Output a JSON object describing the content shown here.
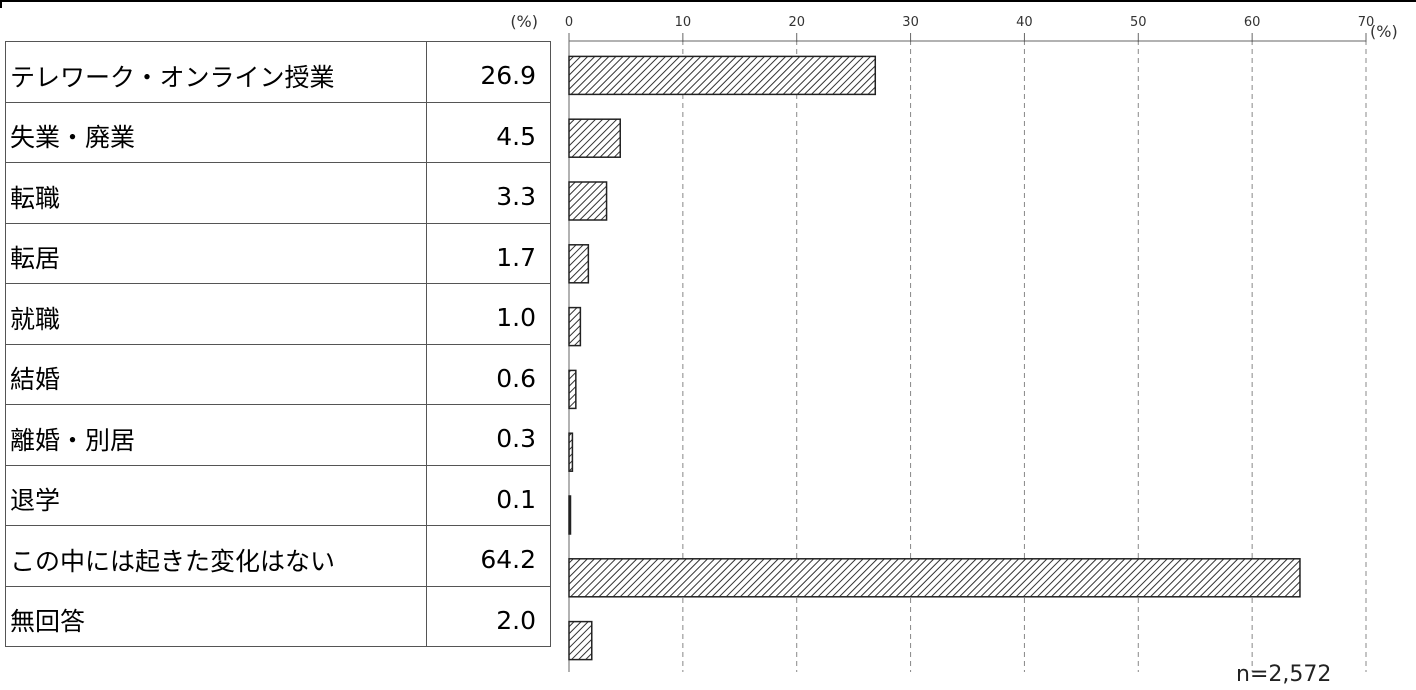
{
  "chart_data": {
    "type": "bar",
    "orientation": "horizontal",
    "categories": [
      "テレワーク・オンライン授業",
      "失業・廃業",
      "転職",
      "転居",
      "就職",
      "結婚",
      "離婚・別居",
      "退学",
      "この中には起きた変化はない",
      "無回答"
    ],
    "values": [
      26.9,
      4.5,
      3.3,
      1.7,
      1.0,
      0.6,
      0.3,
      0.1,
      64.2,
      2.0
    ],
    "value_labels": [
      "26.9",
      "4.5",
      "3.3",
      "1.7",
      "1.0",
      "0.6",
      "0.3",
      "0.1",
      "64.2",
      "2.0"
    ],
    "xlim": [
      0,
      70
    ],
    "xticks": [
      0,
      10,
      20,
      30,
      40,
      50,
      60,
      70
    ],
    "x_unit": "(%)",
    "table_unit": "(%)",
    "grid": "vertical dashed",
    "bar_pattern": "diagonal hatch",
    "note": "n=2,572"
  }
}
